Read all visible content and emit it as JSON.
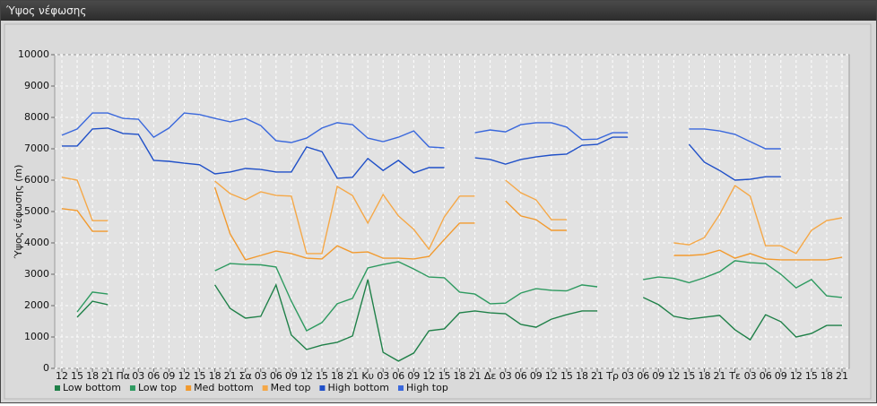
{
  "chart_data": {
    "type": "line",
    "title": "Ύψος νέφωσης",
    "y_label": "Ύψος νέφωσης (m)",
    "categories": [
      "12",
      "15",
      "18",
      "21",
      "Πα",
      "03",
      "06",
      "09",
      "12",
      "15",
      "18",
      "21",
      "Σα",
      "03",
      "06",
      "09",
      "12",
      "15",
      "18",
      "21",
      "Κυ",
      "03",
      "06",
      "09",
      "12",
      "15",
      "18",
      "21",
      "Δε",
      "03",
      "06",
      "09",
      "12",
      "15",
      "18",
      "21",
      "Τρ",
      "03",
      "06",
      "09",
      "12",
      "15",
      "18",
      "21",
      "Τε",
      "03",
      "06",
      "09",
      "12",
      "15",
      "18",
      "21"
    ],
    "ylim": [
      0,
      10000
    ],
    "yticks": [
      0,
      1000,
      2000,
      3000,
      4000,
      5000,
      6000,
      7000,
      8000,
      9000,
      10000
    ],
    "grid": true,
    "series": [
      {
        "name": "Low bottom",
        "color": "#1f8048",
        "values": [
          null,
          1630,
          2140,
          2030,
          null,
          null,
          null,
          null,
          null,
          null,
          2660,
          1910,
          1600,
          1660,
          2660,
          1060,
          600,
          740,
          830,
          1030,
          2830,
          510,
          230,
          490,
          1200,
          1260,
          1770,
          1830,
          1770,
          1740,
          1400,
          1310,
          1570,
          1710,
          1830,
          1830,
          null,
          null,
          2260,
          2030,
          1660,
          1570,
          1630,
          1690,
          1230,
          910,
          1710,
          1490,
          1000,
          1110,
          1370,
          1370
        ]
      },
      {
        "name": "Low top",
        "color": "#2e9a60",
        "values": [
          null,
          1800,
          2430,
          2370,
          null,
          null,
          null,
          null,
          null,
          null,
          3110,
          3340,
          3310,
          3300,
          3230,
          2140,
          1200,
          1460,
          2060,
          2230,
          3200,
          3310,
          3400,
          3170,
          2910,
          2890,
          2430,
          2370,
          2060,
          2080,
          2400,
          2540,
          2490,
          2470,
          2660,
          2600,
          null,
          null,
          2830,
          2910,
          2870,
          2730,
          2890,
          3080,
          3430,
          3370,
          3340,
          3000,
          2570,
          2830,
          2310,
          2260
        ]
      },
      {
        "name": "Med bottom",
        "color": "#f29a2e",
        "values": [
          5090,
          5030,
          4370,
          4370,
          null,
          null,
          null,
          null,
          null,
          null,
          5770,
          4290,
          3460,
          3600,
          3740,
          3660,
          3510,
          3490,
          3910,
          3690,
          3710,
          3510,
          3510,
          3490,
          3570,
          4110,
          4630,
          4630,
          null,
          5340,
          4860,
          4740,
          4400,
          4400,
          null,
          null,
          null,
          null,
          null,
          null,
          3600,
          3600,
          3630,
          3770,
          3510,
          3660,
          3490,
          3460,
          3460,
          3460,
          3460,
          3540
        ]
      },
      {
        "name": "Med top",
        "color": "#f5a848",
        "values": [
          6090,
          6000,
          4710,
          4710,
          null,
          null,
          null,
          null,
          null,
          null,
          5970,
          5570,
          5370,
          5630,
          5510,
          5490,
          3660,
          3660,
          5800,
          5510,
          4630,
          5540,
          4860,
          4430,
          3800,
          4830,
          5490,
          5490,
          null,
          6000,
          5600,
          5370,
          4740,
          4740,
          null,
          null,
          null,
          null,
          null,
          null,
          4000,
          3940,
          4170,
          4910,
          5830,
          5490,
          3910,
          3910,
          3660,
          4400,
          4710,
          4800
        ]
      },
      {
        "name": "High bottom",
        "color": "#2050c8",
        "values": [
          7090,
          7090,
          7630,
          7660,
          7490,
          7460,
          6630,
          6600,
          6540,
          6490,
          6200,
          6260,
          6370,
          6340,
          6260,
          6260,
          7060,
          6910,
          6060,
          6090,
          6690,
          6310,
          6630,
          6230,
          6400,
          6400,
          null,
          6710,
          6660,
          6510,
          6660,
          6740,
          6800,
          6830,
          7110,
          7140,
          7370,
          7370,
          null,
          null,
          null,
          7140,
          6570,
          6310,
          6000,
          6030,
          6110,
          6110,
          null,
          null,
          null,
          null
        ]
      },
      {
        "name": "High top",
        "color": "#3a68dc",
        "values": [
          7430,
          7630,
          8140,
          8140,
          7970,
          7940,
          7370,
          7660,
          8140,
          8090,
          7970,
          7860,
          7970,
          7740,
          7260,
          7200,
          7340,
          7660,
          7830,
          7770,
          7340,
          7230,
          7370,
          7570,
          7060,
          7030,
          null,
          7510,
          7600,
          7540,
          7770,
          7830,
          7830,
          7690,
          7290,
          7310,
          7510,
          7510,
          null,
          null,
          null,
          7630,
          7630,
          7570,
          7460,
          7230,
          7000,
          7000,
          null,
          null,
          null,
          null
        ]
      }
    ]
  }
}
